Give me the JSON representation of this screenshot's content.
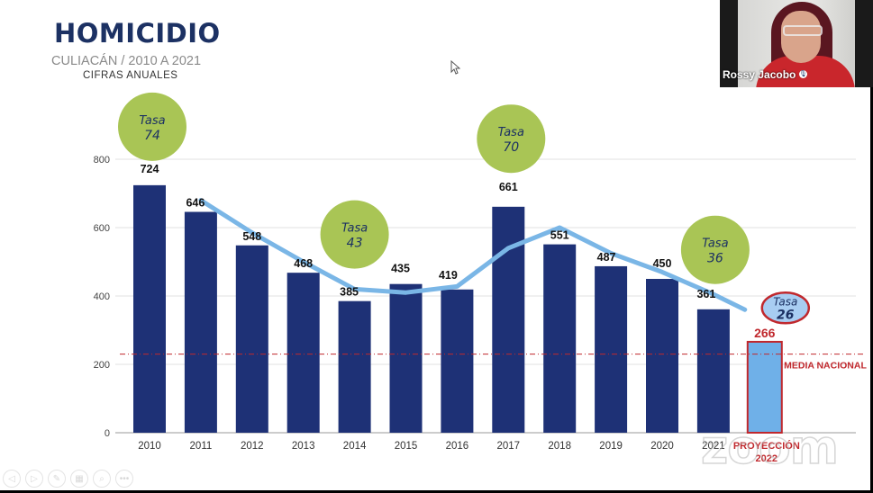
{
  "slide": {
    "title": "HOMICIDIO",
    "subtitle": "CULIACÁN / 2010 A 2021",
    "subtitle2": "CIFRAS  ANUALES"
  },
  "video": {
    "participant_name": "Rossy Jacobo",
    "watermark": "zoom"
  },
  "controls": [
    {
      "name": "previous-icon",
      "glyph": "◁"
    },
    {
      "name": "next-icon",
      "glyph": "▷"
    },
    {
      "name": "pen-icon",
      "glyph": "✎"
    },
    {
      "name": "slides-icon",
      "glyph": "▦"
    },
    {
      "name": "zoom-magnifier-icon",
      "glyph": "⌕"
    },
    {
      "name": "more-icon",
      "glyph": "•••"
    }
  ],
  "chart_data": {
    "type": "bar",
    "title": "HOMICIDIO",
    "categories": [
      "2010",
      "2011",
      "2012",
      "2013",
      "2014",
      "2015",
      "2016",
      "2017",
      "2018",
      "2019",
      "2020",
      "2021"
    ],
    "values": [
      724,
      646,
      548,
      468,
      385,
      435,
      419,
      661,
      551,
      487,
      450,
      361
    ],
    "projection": {
      "label_line1": "PROYECCIÓN",
      "label_line2": "2022",
      "value": 266
    },
    "trend_line": {
      "x": [
        "2011",
        "2012",
        "2013",
        "2014",
        "2015",
        "2016",
        "2017",
        "2018",
        "2019",
        "2020",
        "2021",
        "2022"
      ],
      "values": [
        680,
        585,
        500,
        420,
        410,
        428,
        540,
        600,
        525,
        470,
        405,
        360
      ]
    },
    "reference_line": {
      "label": "MEDIA NACIONAL",
      "value": 230
    },
    "rate_bubbles": [
      {
        "label": "Tasa",
        "value": "74",
        "near": "2010",
        "level": 895
      },
      {
        "label": "Tasa",
        "value": "43",
        "near": "2014",
        "level": 580
      },
      {
        "label": "Tasa",
        "value": "70",
        "near": "2017",
        "level": 860
      },
      {
        "label": "Tasa",
        "value": "36",
        "near": "2021",
        "level": 535
      },
      {
        "label": "Tasa",
        "value": "26",
        "near": "2022",
        "level": 365,
        "highlight": true
      }
    ],
    "yticks": [
      0,
      200,
      400,
      600,
      800
    ],
    "ylim": [
      0,
      800
    ],
    "xlabel": "",
    "ylabel": "",
    "grid": true,
    "colors": {
      "bar": "#1e3176",
      "projection_bar": "#6fb0e8",
      "projection_border": "#c0282d",
      "trend": "#7ab6e6",
      "bubble": "#a9c555",
      "bubble_text": "#1c3163",
      "reference": "#c0282d"
    }
  }
}
